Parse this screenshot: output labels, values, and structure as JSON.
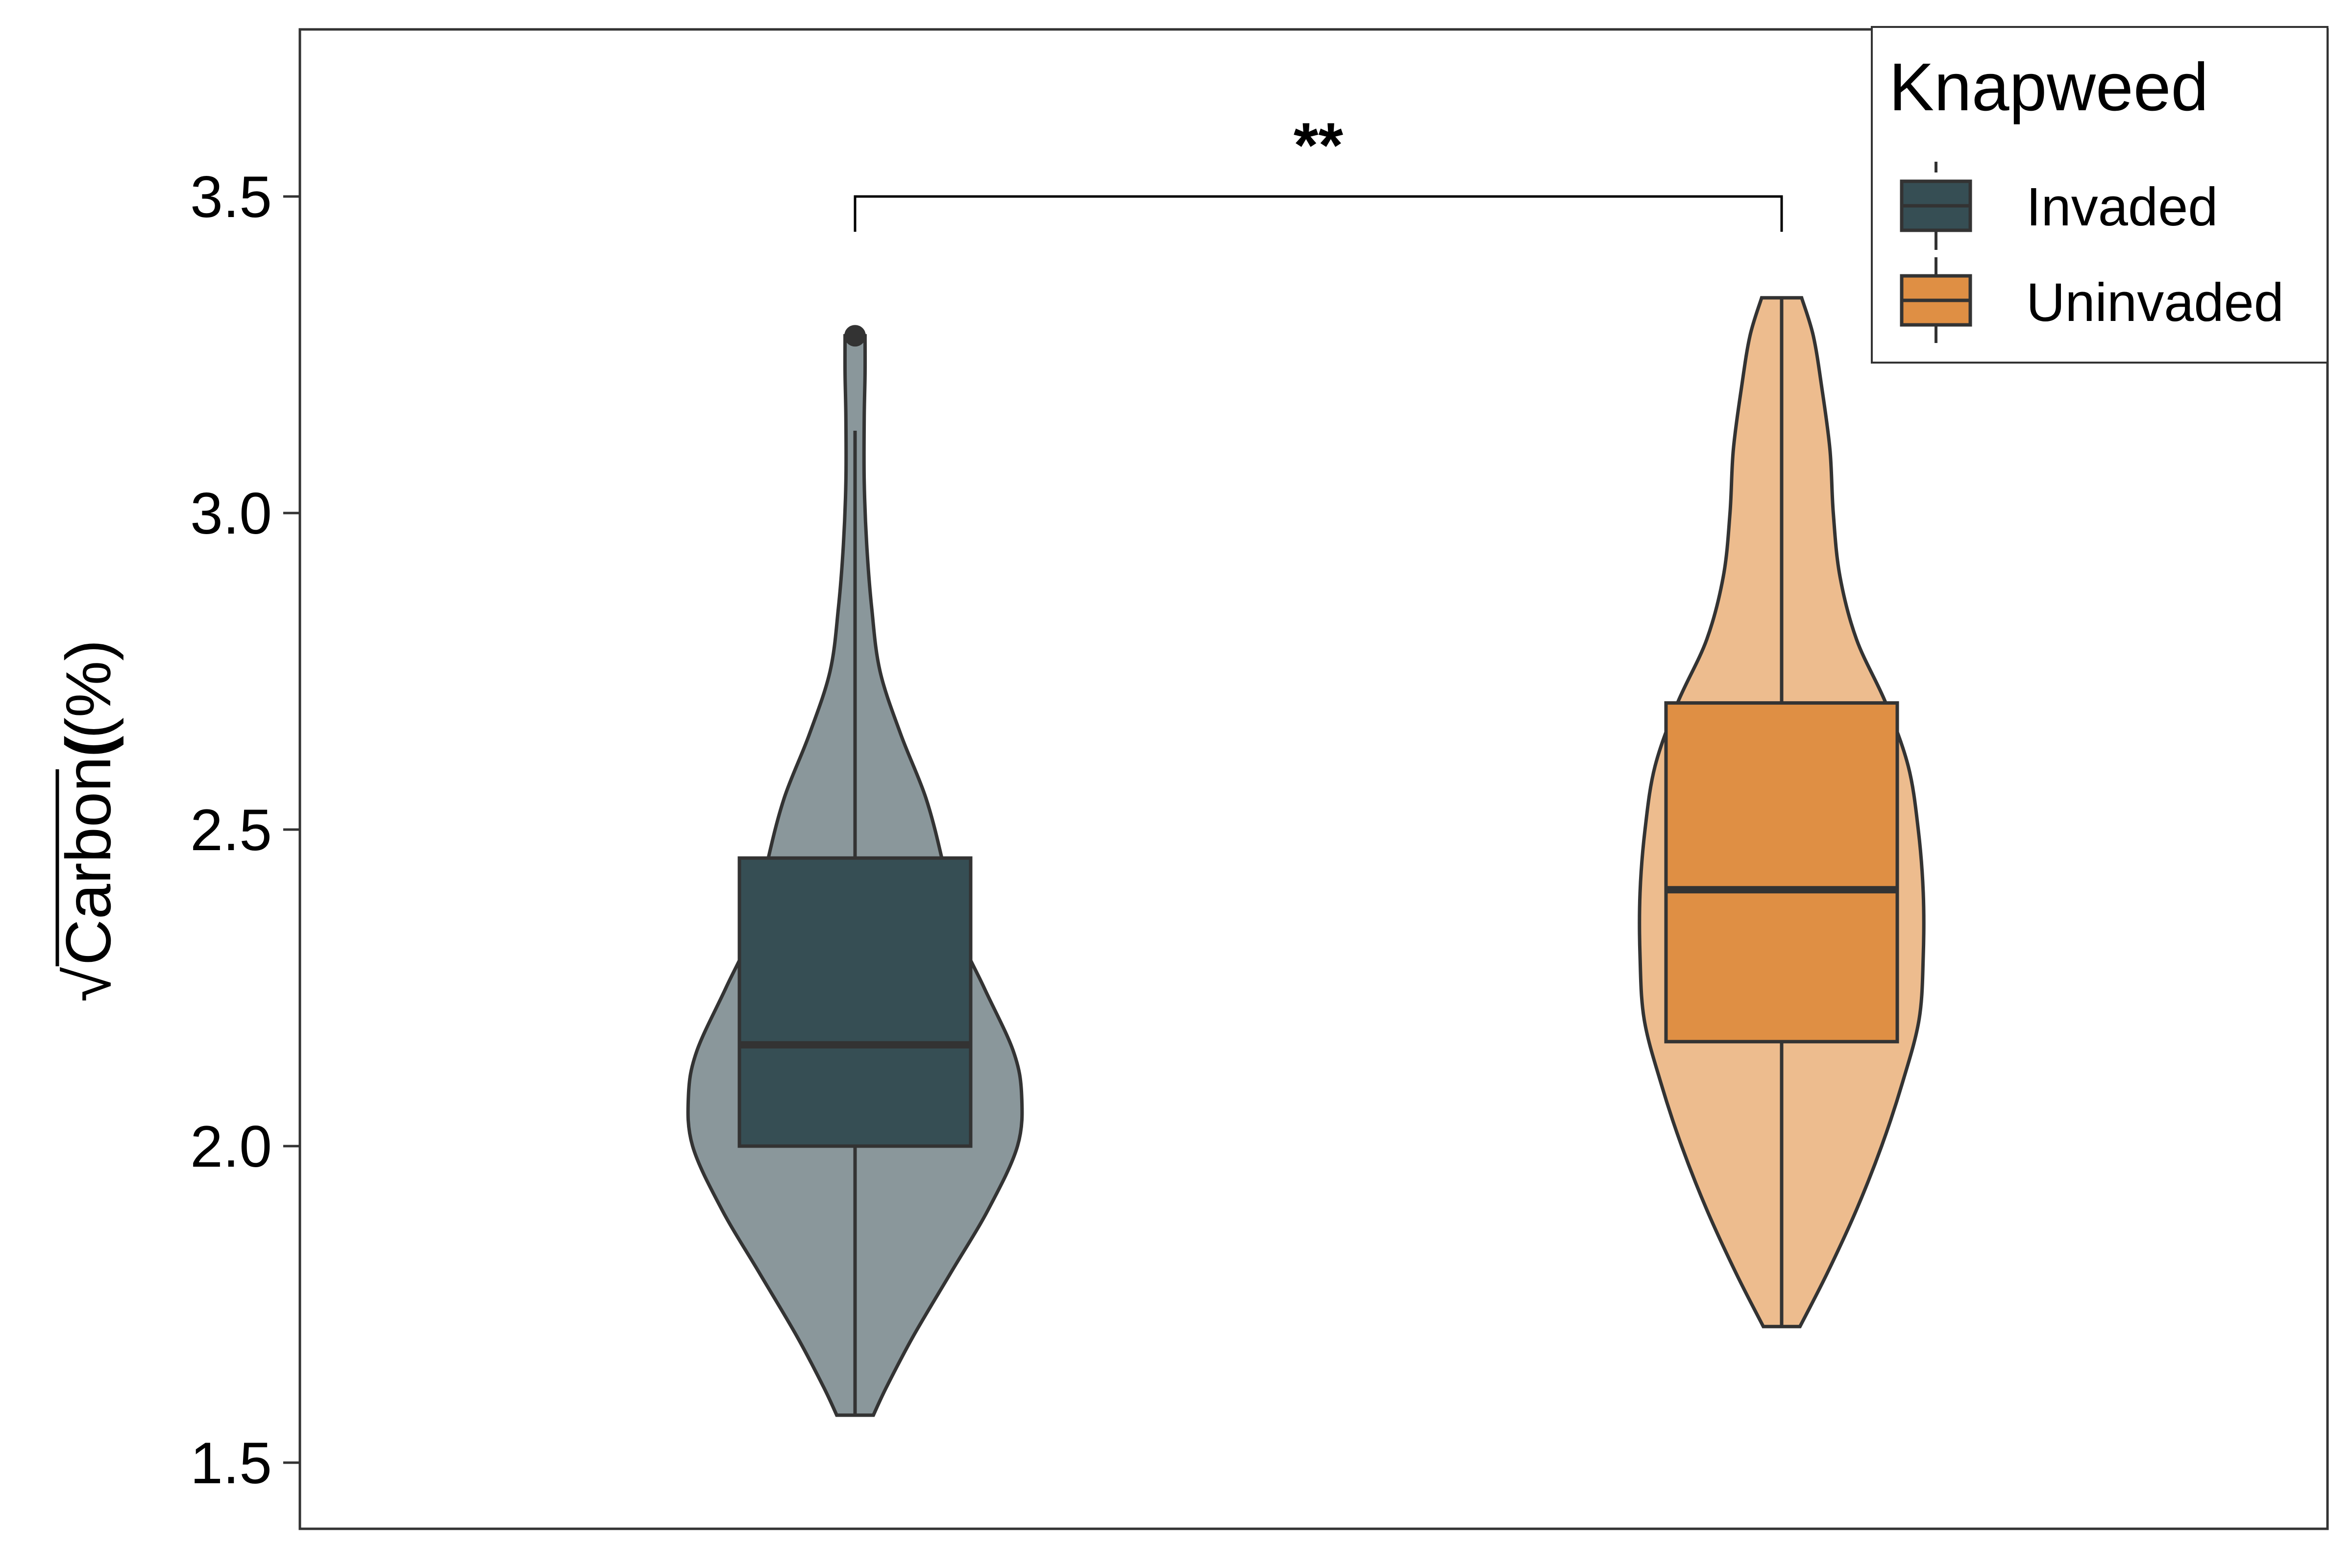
{
  "chart_data": {
    "type": "violin",
    "title": "",
    "xlabel": "",
    "ylabel": "Carbon (%)",
    "ylabel_transform": "√",
    "ylabel_open_paren": "(",
    "ylabel_close_paren": ")",
    "ylim": [
      1.4,
      3.75
    ],
    "yticks": [
      1.5,
      2.0,
      2.5,
      3.0,
      3.5
    ],
    "ytick_labels": [
      "1.5",
      "2.0",
      "2.5",
      "3.0",
      "3.5"
    ],
    "grid": false,
    "legend": {
      "title": "Knapweed",
      "position": "top-right",
      "entries": [
        "Invaded",
        "Uninvaded"
      ]
    },
    "significance": {
      "label": "**",
      "from_group": "Invaded",
      "to_group": "Uninvaded",
      "y": 3.5
    },
    "series": [
      {
        "name": "Invaded",
        "violin_color": "#8a979b",
        "box_color": "#364e54",
        "box": {
          "q1": 2.0,
          "median": 2.16,
          "q3": 2.455,
          "whisker_low": 1.575,
          "whisker_high": 3.13
        },
        "outliers": [
          3.28
        ],
        "density": [
          [
            1.575,
            0.22
          ],
          [
            1.62,
            0.38
          ],
          [
            1.7,
            0.7
          ],
          [
            1.8,
            1.15
          ],
          [
            1.9,
            1.6
          ],
          [
            2.0,
            1.95
          ],
          [
            2.08,
            2.0
          ],
          [
            2.15,
            1.9
          ],
          [
            2.25,
            1.55
          ],
          [
            2.35,
            1.2
          ],
          [
            2.45,
            1.05
          ],
          [
            2.55,
            0.85
          ],
          [
            2.65,
            0.55
          ],
          [
            2.75,
            0.3
          ],
          [
            2.85,
            0.2
          ],
          [
            2.95,
            0.14
          ],
          [
            3.05,
            0.11
          ],
          [
            3.15,
            0.11
          ],
          [
            3.22,
            0.12
          ],
          [
            3.28,
            0.12
          ]
        ]
      },
      {
        "name": "Uninvaded",
        "violin_color": "#edbc8e",
        "box_color": "#df8f44",
        "box": {
          "q1": 2.165,
          "median": 2.405,
          "q3": 2.7,
          "whisker_low": 1.715,
          "whisker_high": 3.34
        },
        "outliers": [],
        "density": [
          [
            1.715,
            0.22
          ],
          [
            1.8,
            0.55
          ],
          [
            1.9,
            0.9
          ],
          [
            2.0,
            1.2
          ],
          [
            2.1,
            1.45
          ],
          [
            2.2,
            1.65
          ],
          [
            2.3,
            1.7
          ],
          [
            2.4,
            1.7
          ],
          [
            2.5,
            1.64
          ],
          [
            2.6,
            1.52
          ],
          [
            2.7,
            1.25
          ],
          [
            2.8,
            0.9
          ],
          [
            2.9,
            0.7
          ],
          [
            3.0,
            0.62
          ],
          [
            3.1,
            0.58
          ],
          [
            3.2,
            0.48
          ],
          [
            3.28,
            0.38
          ],
          [
            3.34,
            0.24
          ]
        ]
      }
    ]
  }
}
